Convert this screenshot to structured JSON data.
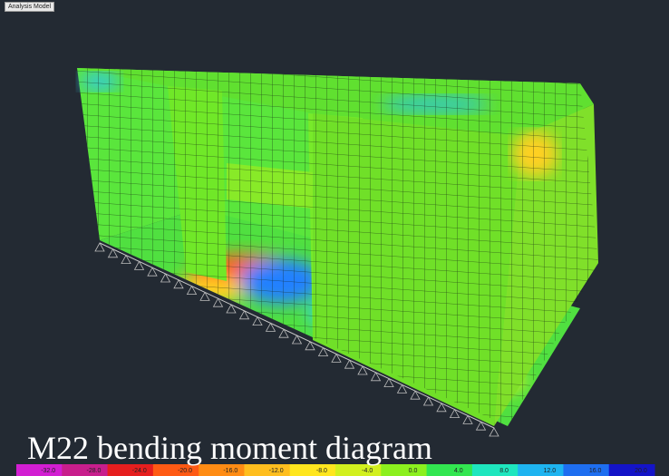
{
  "window": {
    "tab_label": "Analysis Model"
  },
  "caption": "M22 bending moment diagram",
  "legend": {
    "labels": [
      "-32.0",
      "-28.0",
      "-24.0",
      "-20.0",
      "-16.0",
      "-12.0",
      "-8.0",
      "-4.0",
      "0.0",
      "4.0",
      "8.0",
      "12.0",
      "16.0",
      "20.0"
    ],
    "colors": [
      "#d21ed2",
      "#c81e8c",
      "#e61e1e",
      "#ff5a14",
      "#ff8c14",
      "#ffbe1e",
      "#ffe61e",
      "#d2f01e",
      "#8cf01e",
      "#32e650",
      "#1ee6be",
      "#1eb4f0",
      "#1e6ef0",
      "#1414c8"
    ]
  }
}
